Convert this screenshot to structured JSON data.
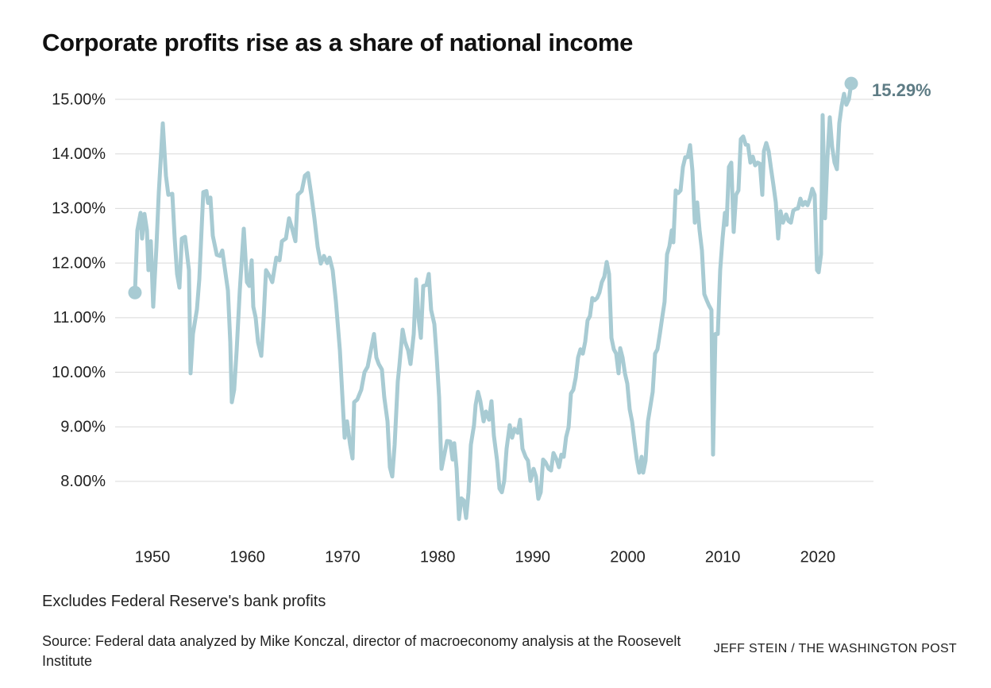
{
  "chart_data": {
    "type": "line",
    "title": "Corporate profits rise as a share of national income",
    "note": "Excludes Federal Reserve's bank profits",
    "source": "Source: Federal data analyzed by Mike Konczal, director of macroeconomy analysis at the Roosevelt Institute",
    "credit": "JEFF STEIN / THE WASHINGTON POST",
    "end_label": "15.29%",
    "color": "#a8cbd3",
    "label_color": "#5e7c85",
    "grid": true,
    "xlim": [
      1946,
      2026
    ],
    "xticks": [
      1950,
      1960,
      1970,
      1980,
      1990,
      2000,
      2010,
      2020
    ],
    "ylim": [
      7.2,
      15.5
    ],
    "yticks": [
      {
        "value": 8,
        "label": "8.00%"
      },
      {
        "value": 9,
        "label": "9.00%"
      },
      {
        "value": 10,
        "label": "10.00%"
      },
      {
        "value": 11,
        "label": "11.00%"
      },
      {
        "value": 12,
        "label": "12.00%"
      },
      {
        "value": 13,
        "label": "13.00%"
      },
      {
        "value": 14,
        "label": "14.00%"
      },
      {
        "value": 15,
        "label": "15.00%"
      }
    ],
    "x": [
      1948.16,
      1948.41,
      1948.75,
      1948.91,
      1949.16,
      1949.42,
      1949.58,
      1949.83,
      1950.08,
      1950.42,
      1950.67,
      1951.09,
      1951.42,
      1951.67,
      1952.09,
      1952.34,
      1952.59,
      1952.84,
      1953.09,
      1953.43,
      1953.84,
      1954.01,
      1954.26,
      1954.68,
      1954.93,
      1955.35,
      1955.68,
      1955.85,
      1956.1,
      1956.35,
      1956.77,
      1957.1,
      1957.35,
      1957.94,
      1958.19,
      1958.35,
      1958.6,
      1958.86,
      1959.19,
      1959.61,
      1959.94,
      1960.19,
      1960.44,
      1960.61,
      1960.86,
      1961.11,
      1961.45,
      1961.7,
      1961.95,
      1962.36,
      1962.61,
      1963.03,
      1963.37,
      1963.62,
      1964.04,
      1964.37,
      1964.7,
      1965.04,
      1965.29,
      1965.71,
      1966.04,
      1966.37,
      1966.71,
      1967.04,
      1967.38,
      1967.71,
      1968.04,
      1968.38,
      1968.63,
      1968.96,
      1969.3,
      1969.72,
      1969.97,
      1970.22,
      1970.47,
      1970.8,
      1971.05,
      1971.22,
      1971.55,
      1971.97,
      1972.31,
      1972.64,
      1972.97,
      1973.31,
      1973.56,
      1973.81,
      1974.14,
      1974.39,
      1974.73,
      1974.98,
      1975.23,
      1975.48,
      1975.81,
      1975.98,
      1976.32,
      1976.57,
      1976.9,
      1977.15,
      1977.49,
      1977.74,
      1977.99,
      1978.24,
      1978.49,
      1978.82,
      1979.07,
      1979.32,
      1979.66,
      1979.91,
      1980.16,
      1980.41,
      1980.74,
      1980.99,
      1981.33,
      1981.58,
      1981.75,
      1982.0,
      1982.25,
      1982.5,
      1982.75,
      1983.0,
      1983.25,
      1983.5,
      1983.83,
      1984.0,
      1984.25,
      1984.5,
      1984.84,
      1985.09,
      1985.42,
      1985.67,
      1985.92,
      1986.26,
      1986.51,
      1986.76,
      1987.01,
      1987.26,
      1987.59,
      1987.84,
      1988.09,
      1988.43,
      1988.68,
      1988.93,
      1989.26,
      1989.51,
      1989.77,
      1990.1,
      1990.35,
      1990.6,
      1990.85,
      1991.1,
      1991.35,
      1991.69,
      1991.94,
      1992.19,
      1992.52,
      1992.77,
      1993.02,
      1993.27,
      1993.52,
      1993.78,
      1994.03,
      1994.28,
      1994.53,
      1994.78,
      1995.03,
      1995.28,
      1995.53,
      1995.78,
      1996.03,
      1996.28,
      1996.53,
      1996.78,
      1997.03,
      1997.28,
      1997.54,
      1997.79,
      1998.04,
      1998.29,
      1998.54,
      1998.79,
      1999.04,
      1999.21,
      1999.46,
      1999.71,
      1999.96,
      2000.21,
      2000.46,
      2000.71,
      2000.96,
      2001.21,
      2001.46,
      2001.63,
      2001.88,
      2002.13,
      2002.38,
      2002.63,
      2002.88,
      2003.13,
      2003.38,
      2003.63,
      2003.88,
      2004.14,
      2004.39,
      2004.64,
      2004.8,
      2005.05,
      2005.3,
      2005.56,
      2005.81,
      2006.06,
      2006.31,
      2006.56,
      2006.81,
      2007.06,
      2007.31,
      2007.56,
      2007.81,
      2008.06,
      2008.31,
      2008.56,
      2008.81,
      2008.98,
      2009.23,
      2009.48,
      2009.73,
      2009.98,
      2010.23,
      2010.4,
      2010.65,
      2010.9,
      2011.15,
      2011.4,
      2011.65,
      2011.9,
      2012.15,
      2012.41,
      2012.66,
      2012.91,
      2013.16,
      2013.41,
      2013.66,
      2013.91,
      2014.16,
      2014.33,
      2014.58,
      2014.83,
      2015.08,
      2015.33,
      2015.58,
      2015.83,
      2016.08,
      2016.33,
      2016.67,
      2016.92,
      2017.17,
      2017.42,
      2017.67,
      2017.92,
      2018.17,
      2018.42,
      2018.67,
      2018.92,
      2019.17,
      2019.42,
      2019.67,
      2019.92,
      2020.09,
      2020.34,
      2020.51,
      2020.76,
      2021.01,
      2021.26,
      2021.51,
      2021.76,
      2022.01,
      2022.26,
      2022.51,
      2022.76,
      2023.01,
      2023.27,
      2023.52
    ],
    "values": [
      11.46,
      12.6,
      12.92,
      12.45,
      12.9,
      12.6,
      11.87,
      12.4,
      11.2,
      12.3,
      13.3,
      14.56,
      13.6,
      13.25,
      13.27,
      12.45,
      11.8,
      11.55,
      12.45,
      12.48,
      11.87,
      9.98,
      10.7,
      11.15,
      11.7,
      13.3,
      13.32,
      13.1,
      13.2,
      12.5,
      12.15,
      12.13,
      12.23,
      11.5,
      10.55,
      9.45,
      9.68,
      10.4,
      11.5,
      12.63,
      11.65,
      11.58,
      12.05,
      11.2,
      11.0,
      10.55,
      10.3,
      11.0,
      11.87,
      11.75,
      11.65,
      12.1,
      12.05,
      12.4,
      12.45,
      12.82,
      12.63,
      12.4,
      13.25,
      13.32,
      13.6,
      13.65,
      13.25,
      12.82,
      12.3,
      11.99,
      12.13,
      12.0,
      12.1,
      11.87,
      11.3,
      10.4,
      9.6,
      8.8,
      9.1,
      8.67,
      8.42,
      9.45,
      9.5,
      9.68,
      10.0,
      10.1,
      10.4,
      10.7,
      10.27,
      10.15,
      10.05,
      9.54,
      9.1,
      8.26,
      8.09,
      8.67,
      9.83,
      10.12,
      10.78,
      10.56,
      10.4,
      10.15,
      10.7,
      11.7,
      11.0,
      10.63,
      11.58,
      11.6,
      11.8,
      11.14,
      10.88,
      10.27,
      9.54,
      8.23,
      8.52,
      8.74,
      8.73,
      8.4,
      8.7,
      8.23,
      7.31,
      7.69,
      7.65,
      7.33,
      7.8,
      8.67,
      9.03,
      9.4,
      9.64,
      9.47,
      9.1,
      9.28,
      9.13,
      9.47,
      8.84,
      8.38,
      7.87,
      7.8,
      8.01,
      8.6,
      9.03,
      8.8,
      8.96,
      8.89,
      9.13,
      8.6,
      8.45,
      8.38,
      8.01,
      8.23,
      8.09,
      7.68,
      7.8,
      8.4,
      8.35,
      8.23,
      8.2,
      8.52,
      8.4,
      8.26,
      8.49,
      8.45,
      8.81,
      8.99,
      9.61,
      9.68,
      9.9,
      10.27,
      10.42,
      10.34,
      10.56,
      10.95,
      11.03,
      11.36,
      11.32,
      11.36,
      11.46,
      11.65,
      11.75,
      12.02,
      11.8,
      10.63,
      10.42,
      10.34,
      9.98,
      10.44,
      10.27,
      9.98,
      9.79,
      9.32,
      9.1,
      8.74,
      8.4,
      8.16,
      8.45,
      8.16,
      8.38,
      9.1,
      9.37,
      9.64,
      10.34,
      10.42,
      10.7,
      11.0,
      11.29,
      12.16,
      12.31,
      12.6,
      12.38,
      13.33,
      13.28,
      13.33,
      13.76,
      13.94,
      13.94,
      14.16,
      13.69,
      12.74,
      13.11,
      12.6,
      12.23,
      11.43,
      11.32,
      11.22,
      11.14,
      8.49,
      10.7,
      10.7,
      11.87,
      12.45,
      12.92,
      12.7,
      13.76,
      13.84,
      12.57,
      13.25,
      13.33,
      14.27,
      14.32,
      14.17,
      14.16,
      13.84,
      13.95,
      13.79,
      13.84,
      13.82,
      13.25,
      14.05,
      14.2,
      14.05,
      13.73,
      13.43,
      13.11,
      12.45,
      12.95,
      12.74,
      12.89,
      12.77,
      12.74,
      12.96,
      12.99,
      13.0,
      13.18,
      13.06,
      13.12,
      13.06,
      13.18,
      13.36,
      13.25,
      11.87,
      11.83,
      12.16,
      14.71,
      12.82,
      13.91,
      14.67,
      14.13,
      13.84,
      13.72,
      14.56,
      14.88,
      15.1,
      14.9,
      15.0,
      15.29
    ]
  }
}
